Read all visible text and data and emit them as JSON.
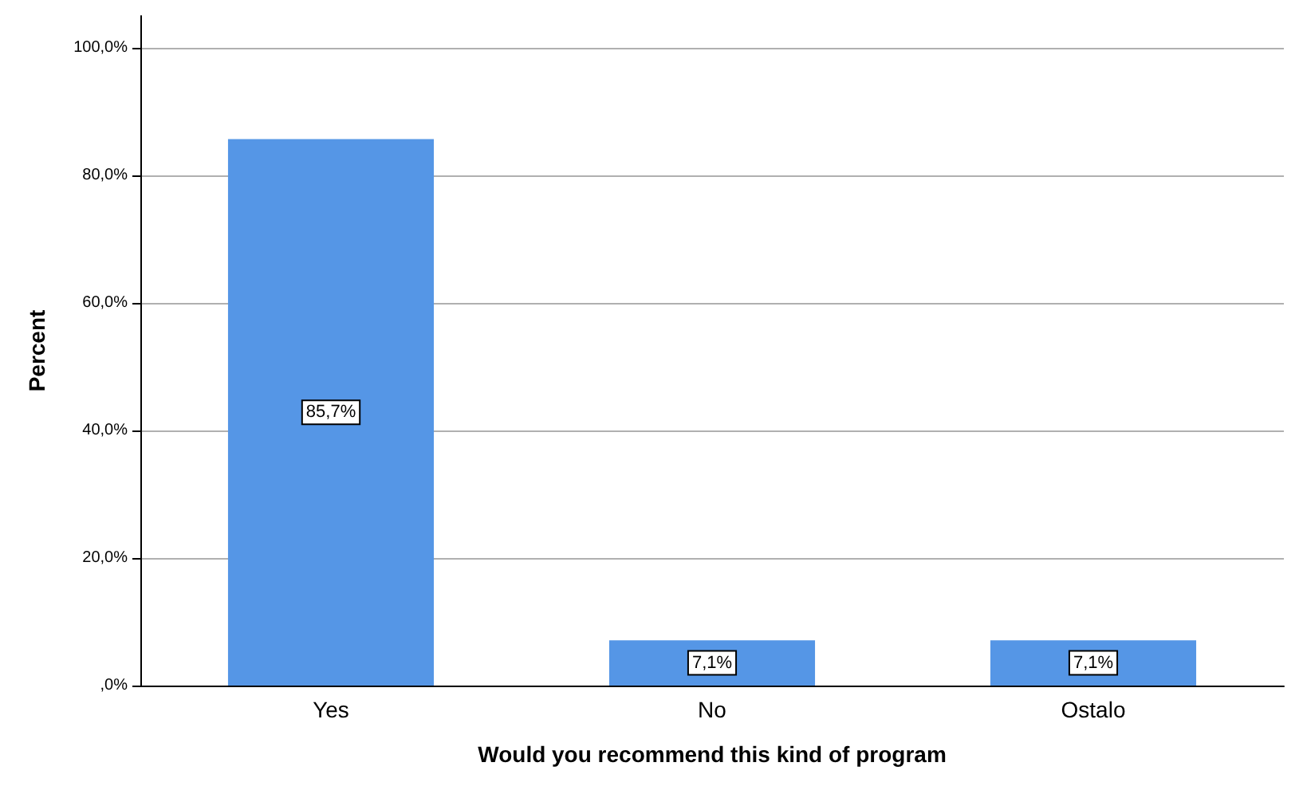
{
  "chart_data": {
    "type": "bar",
    "xlabel": "Would you recommend this kind of program",
    "ylabel": "Percent",
    "categories": [
      "Yes",
      "No",
      "Ostalo"
    ],
    "values": [
      85.7,
      7.1,
      7.1
    ],
    "color": "#5596e6",
    "value_labels": [
      "85,7%",
      "7,1%",
      "7,1%"
    ],
    "ylim": [
      0,
      105
    ],
    "yticks": [
      {
        "value": 0,
        "label": ",0%"
      },
      {
        "value": 20,
        "label": "20,0%"
      },
      {
        "value": 40,
        "label": "40,0%"
      },
      {
        "value": 60,
        "label": "60,0%"
      },
      {
        "value": 80,
        "label": "80,0%"
      },
      {
        "value": 100,
        "label": "100,0%"
      }
    ],
    "grid": "y"
  }
}
